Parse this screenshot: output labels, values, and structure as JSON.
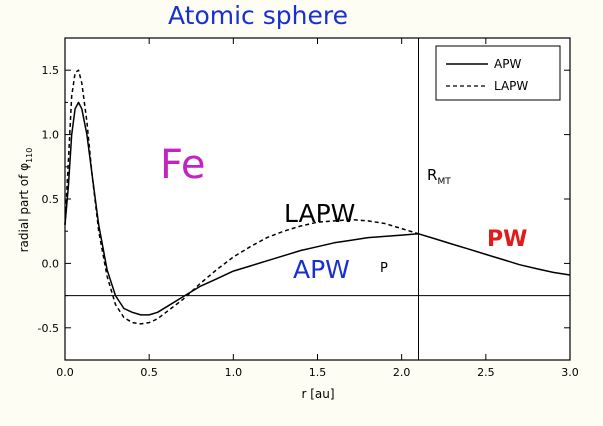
{
  "chart_data": {
    "type": "line",
    "title": "Atomic sphere",
    "xlabel": "r [au]",
    "ylabel": "radial part of φ",
    "ylabel_sub": "110",
    "xlim": [
      0.0,
      3.0
    ],
    "ylim": [
      -0.75,
      1.75
    ],
    "xticks": [
      "0.0",
      "0.5",
      "1.0",
      "1.5",
      "2.0",
      "2.5",
      "3.0"
    ],
    "yticks": [
      "-0.5",
      "0.0",
      "0.5",
      "1.0",
      "1.5"
    ],
    "grid": false,
    "legend_position": "top-right",
    "series": [
      {
        "name": "APW",
        "style": "solid",
        "x": [
          0.0,
          0.02,
          0.04,
          0.06,
          0.08,
          0.1,
          0.13,
          0.16,
          0.2,
          0.25,
          0.3,
          0.35,
          0.4,
          0.45,
          0.5,
          0.55,
          0.6,
          0.7,
          0.8,
          0.9,
          1.0,
          1.1,
          1.2,
          1.3,
          1.4,
          1.5,
          1.6,
          1.7,
          1.8,
          1.9,
          2.0,
          2.1,
          2.2,
          2.3,
          2.4,
          2.5,
          2.6,
          2.7,
          2.8,
          2.9,
          3.0
        ],
        "y": [
          0.3,
          0.6,
          1.0,
          1.2,
          1.25,
          1.2,
          1.0,
          0.7,
          0.3,
          -0.05,
          -0.25,
          -0.35,
          -0.38,
          -0.4,
          -0.4,
          -0.38,
          -0.34,
          -0.26,
          -0.18,
          -0.12,
          -0.06,
          -0.02,
          0.02,
          0.06,
          0.1,
          0.13,
          0.16,
          0.18,
          0.2,
          0.21,
          0.22,
          0.23,
          0.19,
          0.15,
          0.11,
          0.07,
          0.03,
          -0.01,
          -0.04,
          -0.07,
          -0.09
        ]
      },
      {
        "name": "LAPW",
        "style": "dashed",
        "x": [
          0.0,
          0.02,
          0.04,
          0.06,
          0.08,
          0.1,
          0.13,
          0.16,
          0.2,
          0.25,
          0.3,
          0.35,
          0.4,
          0.45,
          0.5,
          0.55,
          0.6,
          0.7,
          0.8,
          0.9,
          1.0,
          1.1,
          1.2,
          1.3,
          1.4,
          1.5,
          1.6,
          1.7,
          1.8,
          1.9,
          2.0,
          2.1
        ],
        "y": [
          0.3,
          0.8,
          1.3,
          1.48,
          1.5,
          1.4,
          1.1,
          0.7,
          0.25,
          -0.1,
          -0.32,
          -0.42,
          -0.46,
          -0.47,
          -0.46,
          -0.43,
          -0.38,
          -0.28,
          -0.16,
          -0.05,
          0.05,
          0.13,
          0.2,
          0.25,
          0.29,
          0.32,
          0.33,
          0.34,
          0.33,
          0.31,
          0.27,
          0.23
        ]
      }
    ],
    "annotations": {
      "element": "Fe",
      "lapw_label": "LAPW",
      "apw_label": "APW",
      "p_label": "P",
      "rmt_label": "R",
      "rmt_sub": "MT",
      "pw_label": "PW",
      "rmt_x": 2.1,
      "hline_y": -0.25
    },
    "colors": {
      "title": "#1a2fcf",
      "element": "#c423c4",
      "apw_label": "#1a2fcf",
      "pw_label": "#e31a1a",
      "lines": "#000000"
    }
  }
}
